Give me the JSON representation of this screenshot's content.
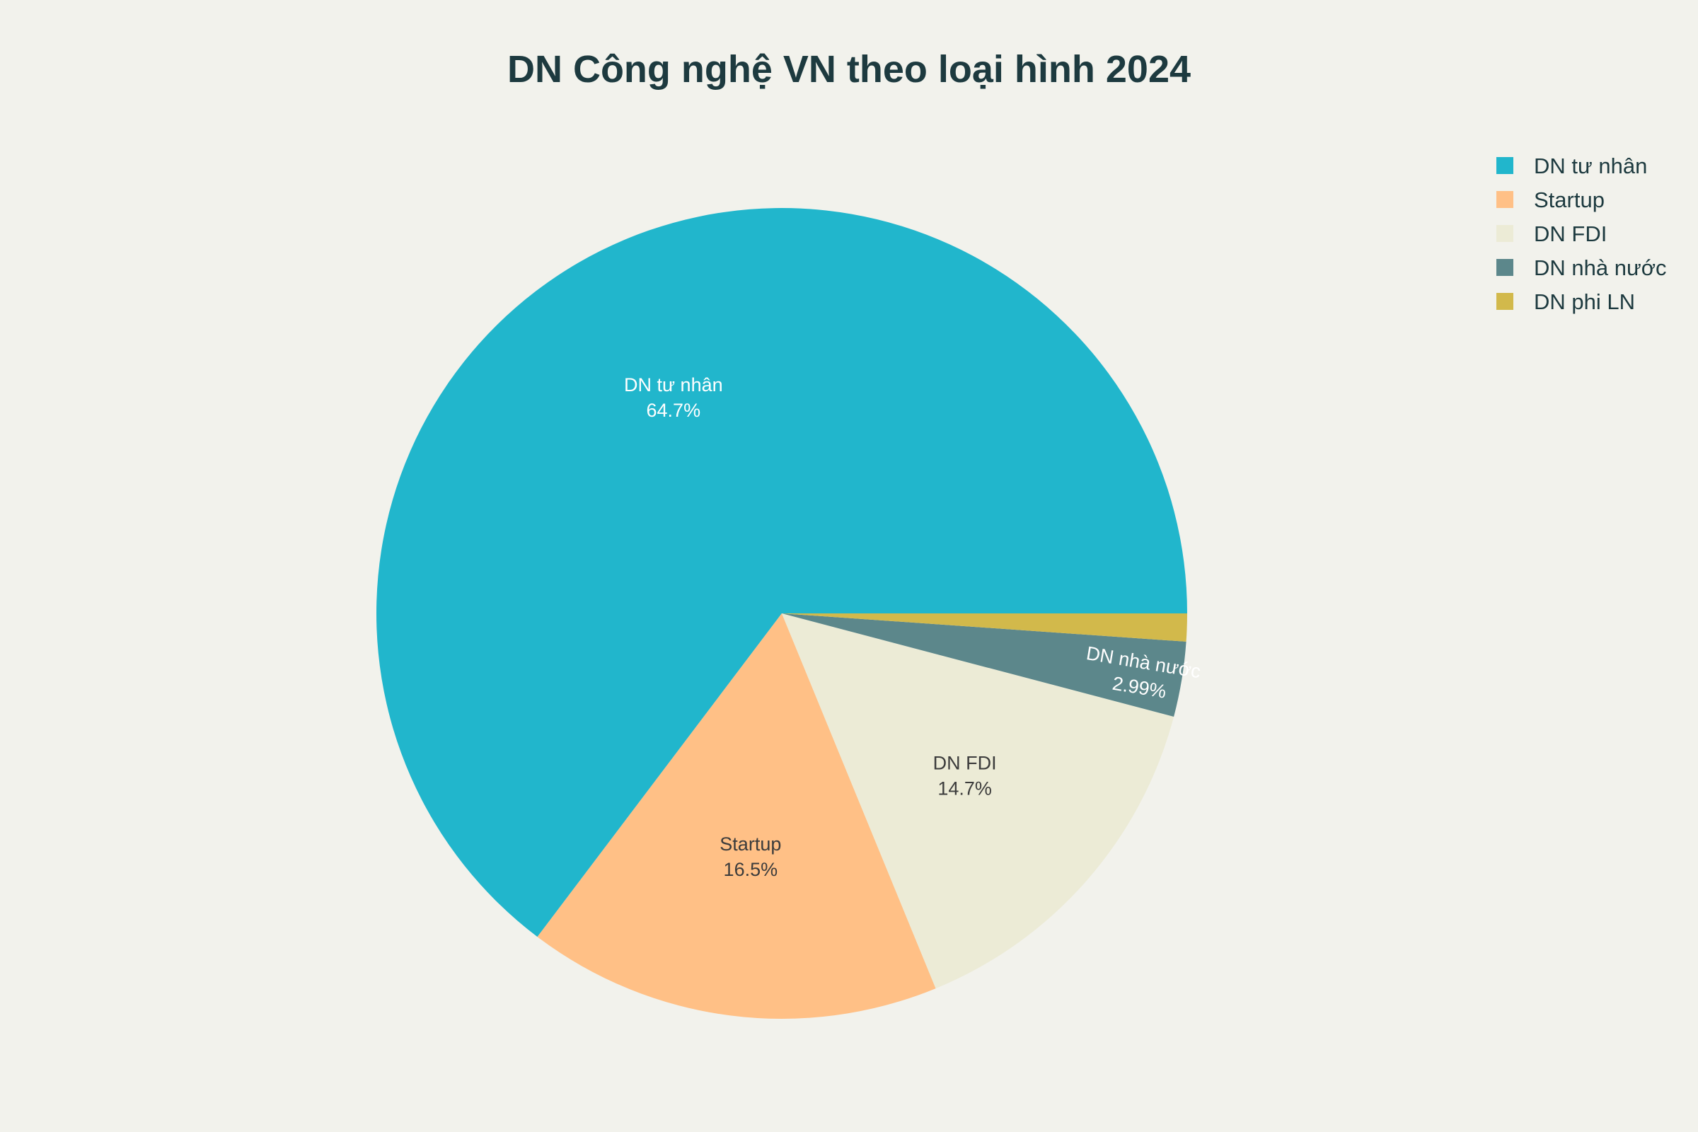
{
  "chart_data": {
    "type": "pie",
    "title": "DN Công nghệ VN theo loại hình 2024",
    "categories": [
      "DN tư nhân",
      "Startup",
      "DN FDI",
      "DN nhà nước",
      "DN phi LN"
    ],
    "values": [
      64.7,
      16.5,
      14.7,
      2.99,
      1.11
    ],
    "value_labels": [
      "64.7%",
      "16.5%",
      "14.7%",
      "2.99%",
      ""
    ],
    "colors": [
      "#21b6cc",
      "#ffc086",
      "#ecebd6",
      "#5c878b",
      "#d2b94b"
    ],
    "legend": "top-right",
    "text_on_slice": "label+percent"
  }
}
